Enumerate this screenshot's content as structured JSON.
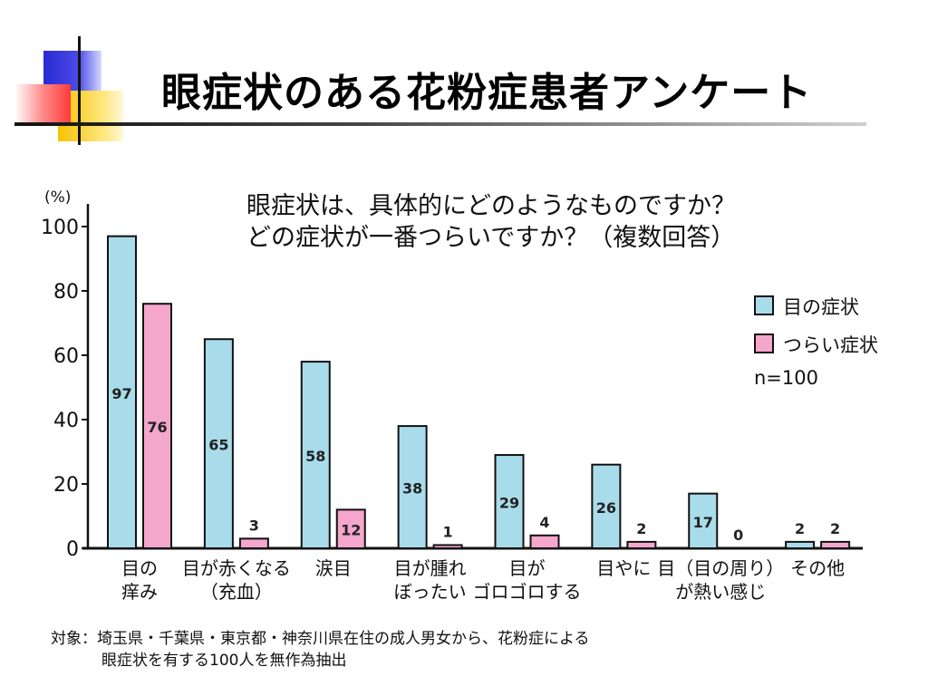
{
  "slide": {
    "title": "眼症状のある花粉症患者アンケート"
  },
  "chart_data": {
    "type": "bar",
    "title_lines": [
      "眼症状は、具体的にどのようなものですか？",
      "どの症状が一番つらいですか？（複数回答）"
    ],
    "y_unit": "(%)",
    "ylim": [
      0,
      100
    ],
    "y_ticks": [
      0,
      20,
      40,
      60,
      80,
      100
    ],
    "categories": [
      {
        "line1": "目の",
        "line2": "痒み"
      },
      {
        "line1": "目が赤くなる",
        "line2": "（充血）"
      },
      {
        "line1": "涙目",
        "line2": ""
      },
      {
        "line1": "目が腫れ",
        "line2": "ぼったい"
      },
      {
        "line1": "目が",
        "line2": "ゴロゴロする"
      },
      {
        "line1": "目やに",
        "line2": ""
      },
      {
        "line1": "目（目の周り）",
        "line2": "が熱い感じ"
      },
      {
        "line1": "その他",
        "line2": ""
      }
    ],
    "series": [
      {
        "name": "目の症状",
        "color": "#a9dcea",
        "values": [
          97,
          65,
          58,
          38,
          29,
          26,
          17,
          2
        ]
      },
      {
        "name": "つらい症状",
        "color": "#f4a6cd",
        "values": [
          76,
          3,
          12,
          1,
          4,
          2,
          0,
          2
        ]
      }
    ],
    "n_label": "n=100",
    "legend_position": "right",
    "grid": false
  },
  "footnote": {
    "line1": "対象：埼玉県・千葉県・東京都・神奈川県在住の成人男女から、花粉症による",
    "line2": "眼症状を有する100人を無作為抽出"
  }
}
